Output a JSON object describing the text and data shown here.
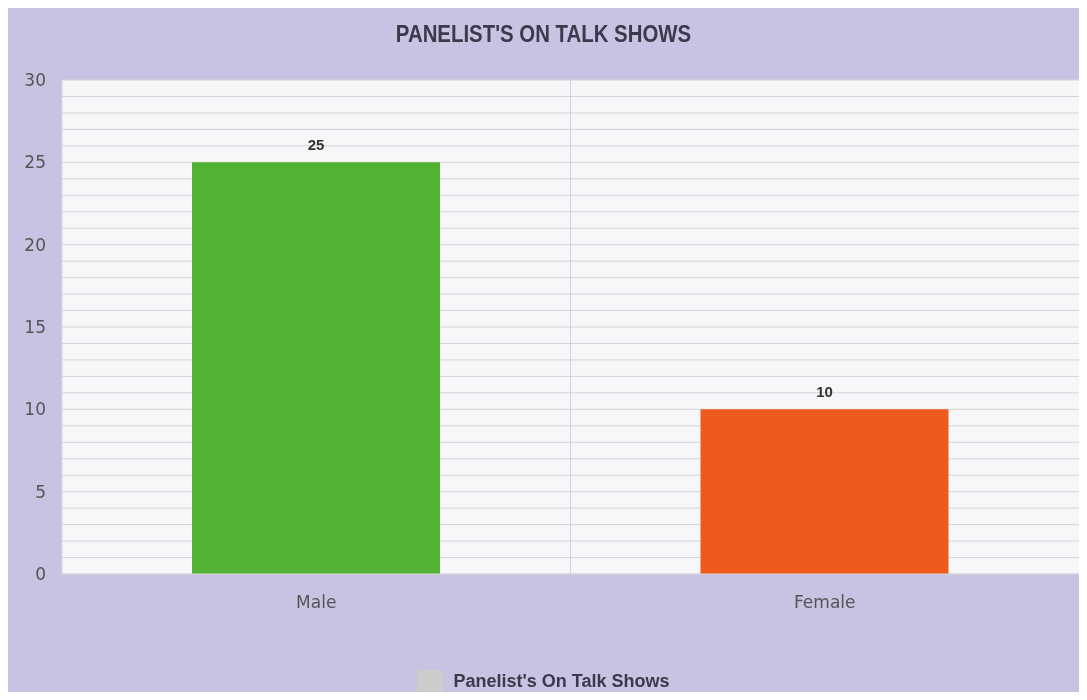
{
  "chart_data": {
    "type": "bar",
    "title": "PANELIST'S ON TALK SHOWS",
    "categories": [
      "Male",
      "Female"
    ],
    "series": [
      {
        "name": "Panelist's On Talk Shows",
        "color": "#cccccc",
        "colors": [
          "#52b234",
          "#ee5a1e"
        ],
        "values": [
          25,
          10
        ]
      }
    ],
    "ylim": [
      0,
      30
    ],
    "yticks": [
      0,
      {
        "value": 1,
        "label": null
      },
      {
        "value": 2,
        "label": null
      },
      {
        "value": 3,
        "label": null
      },
      {
        "value": 4,
        "label": null
      },
      5,
      {
        "value": 6,
        "label": null
      },
      {
        "value": 7,
        "label": null
      },
      {
        "value": 8,
        "label": null
      },
      {
        "value": 9,
        "label": null
      },
      10,
      {
        "value": 11,
        "label": null
      },
      {
        "value": 12,
        "label": null
      },
      {
        "value": 13,
        "label": null
      },
      {
        "value": 14,
        "label": null
      },
      15,
      {
        "value": 16,
        "label": null
      },
      {
        "value": 17,
        "label": null
      },
      {
        "value": 18,
        "label": null
      },
      {
        "value": 19,
        "label": null
      },
      20,
      {
        "value": 21,
        "label": null
      },
      {
        "value": 22,
        "label": null
      },
      {
        "value": 23,
        "label": null
      },
      {
        "value": 24,
        "label": null
      },
      25,
      {
        "value": 26,
        "label": null
      },
      {
        "value": 27,
        "label": null
      },
      {
        "value": 28,
        "label": null
      },
      {
        "value": 29,
        "label": null
      },
      30
    ],
    "grid": true,
    "data_labels": true,
    "legend": "bottom"
  }
}
